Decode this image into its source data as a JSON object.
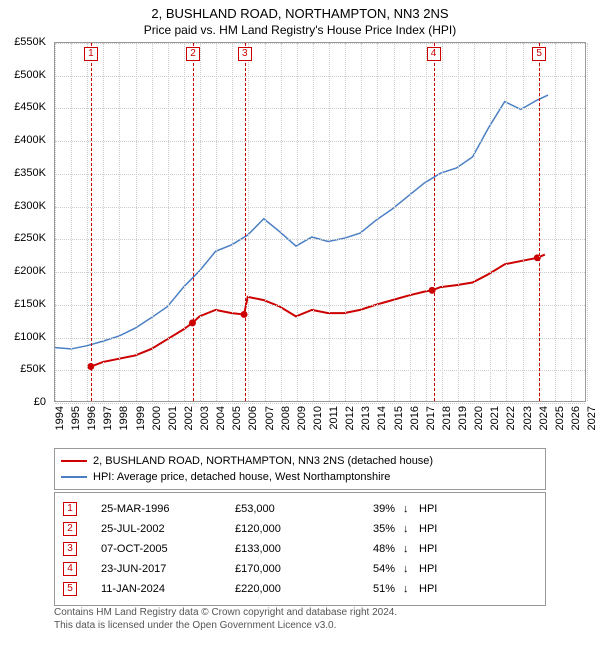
{
  "title": "2, BUSHLAND ROAD, NORTHAMPTON, NN3 2NS",
  "subtitle": "Price paid vs. HM Land Registry's House Price Index (HPI)",
  "chart": {
    "type": "line",
    "background_color": "#ffffff",
    "grid_color": "#cccccc",
    "axis_color": "#999999",
    "xlim": [
      1994,
      2027
    ],
    "x_ticks": [
      1994,
      1995,
      1996,
      1997,
      1998,
      1999,
      2000,
      2001,
      2002,
      2003,
      2004,
      2005,
      2006,
      2007,
      2008,
      2009,
      2010,
      2011,
      2012,
      2013,
      2014,
      2015,
      2016,
      2017,
      2018,
      2019,
      2020,
      2021,
      2022,
      2023,
      2024,
      2025,
      2026,
      2027
    ],
    "ylim": [
      0,
      550000
    ],
    "y_ticks": [
      0,
      50000,
      100000,
      150000,
      200000,
      250000,
      300000,
      350000,
      400000,
      450000,
      500000,
      550000
    ],
    "y_tick_labels": [
      "£0",
      "£50K",
      "£100K",
      "£150K",
      "£200K",
      "£250K",
      "£300K",
      "£350K",
      "£400K",
      "£450K",
      "£500K",
      "£550K"
    ],
    "label_fontsize": 11,
    "series": [
      {
        "name": "price_paid",
        "label": "2, BUSHLAND ROAD, NORTHAMPTON, NN3 2NS (detached house)",
        "color": "#cc0000",
        "line_width": 2,
        "data": [
          [
            1996.23,
            53000
          ],
          [
            1997,
            60000
          ],
          [
            1998,
            65000
          ],
          [
            1999,
            70000
          ],
          [
            2000,
            80000
          ],
          [
            2001,
            95000
          ],
          [
            2002,
            110000
          ],
          [
            2002.56,
            120000
          ],
          [
            2003,
            130000
          ],
          [
            2004,
            140000
          ],
          [
            2005,
            135000
          ],
          [
            2005.77,
            133000
          ],
          [
            2006,
            160000
          ],
          [
            2007,
            155000
          ],
          [
            2008,
            145000
          ],
          [
            2009,
            130000
          ],
          [
            2010,
            140000
          ],
          [
            2011,
            135000
          ],
          [
            2012,
            135000
          ],
          [
            2013,
            140000
          ],
          [
            2014,
            148000
          ],
          [
            2015,
            155000
          ],
          [
            2016,
            162000
          ],
          [
            2017,
            168000
          ],
          [
            2017.48,
            170000
          ],
          [
            2018,
            175000
          ],
          [
            2019,
            178000
          ],
          [
            2020,
            182000
          ],
          [
            2021,
            195000
          ],
          [
            2022,
            210000
          ],
          [
            2023,
            215000
          ],
          [
            2024.03,
            220000
          ],
          [
            2024.5,
            225000
          ]
        ]
      },
      {
        "name": "hpi",
        "label": "HPI: Average price, detached house, West Northamptonshire",
        "color": "#4a7fc4",
        "line_width": 1.5,
        "data": [
          [
            1994,
            82000
          ],
          [
            1995,
            80000
          ],
          [
            1996,
            85000
          ],
          [
            1997,
            92000
          ],
          [
            1998,
            100000
          ],
          [
            1999,
            112000
          ],
          [
            2000,
            128000
          ],
          [
            2001,
            145000
          ],
          [
            2002,
            175000
          ],
          [
            2003,
            200000
          ],
          [
            2004,
            230000
          ],
          [
            2005,
            240000
          ],
          [
            2006,
            255000
          ],
          [
            2007,
            280000
          ],
          [
            2008,
            260000
          ],
          [
            2009,
            238000
          ],
          [
            2010,
            252000
          ],
          [
            2011,
            245000
          ],
          [
            2012,
            250000
          ],
          [
            2013,
            258000
          ],
          [
            2014,
            278000
          ],
          [
            2015,
            295000
          ],
          [
            2016,
            315000
          ],
          [
            2017,
            335000
          ],
          [
            2018,
            350000
          ],
          [
            2019,
            358000
          ],
          [
            2020,
            375000
          ],
          [
            2021,
            420000
          ],
          [
            2022,
            460000
          ],
          [
            2023,
            448000
          ],
          [
            2024,
            462000
          ],
          [
            2024.7,
            470000
          ]
        ]
      }
    ],
    "sale_markers": [
      {
        "n": "1",
        "x": 1996.23,
        "y": 53000
      },
      {
        "n": "2",
        "x": 2002.56,
        "y": 120000
      },
      {
        "n": "3",
        "x": 2005.77,
        "y": 133000
      },
      {
        "n": "4",
        "x": 2017.48,
        "y": 170000
      },
      {
        "n": "5",
        "x": 2024.03,
        "y": 220000
      }
    ]
  },
  "legend": {
    "items": [
      {
        "color": "#cc0000",
        "width": 2,
        "label": "2, BUSHLAND ROAD, NORTHAMPTON, NN3 2NS (detached house)"
      },
      {
        "color": "#4a7fc4",
        "width": 1.5,
        "label": "HPI: Average price, detached house, West Northamptonshire"
      }
    ]
  },
  "sales_table": {
    "arrow": "↓",
    "hpi_label": "HPI",
    "rows": [
      {
        "n": "1",
        "date": "25-MAR-1996",
        "price": "£53,000",
        "pct": "39%"
      },
      {
        "n": "2",
        "date": "25-JUL-2002",
        "price": "£120,000",
        "pct": "35%"
      },
      {
        "n": "3",
        "date": "07-OCT-2005",
        "price": "£133,000",
        "pct": "48%"
      },
      {
        "n": "4",
        "date": "23-JUN-2017",
        "price": "£170,000",
        "pct": "54%"
      },
      {
        "n": "5",
        "date": "11-JAN-2024",
        "price": "£220,000",
        "pct": "51%"
      }
    ]
  },
  "footer": {
    "line1": "Contains HM Land Registry data © Crown copyright and database right 2024.",
    "line2": "This data is licensed under the Open Government Licence v3.0."
  }
}
